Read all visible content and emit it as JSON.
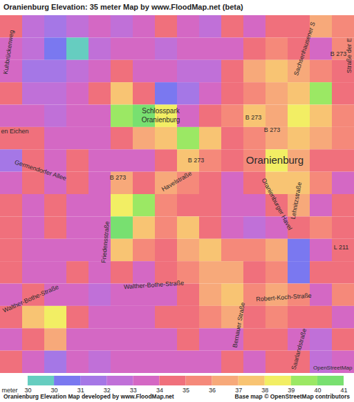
{
  "chart_data": {
    "type": "heatmap",
    "title": "Oranienburg Elevation: 35 meter Map by www.FloodMap.net (beta)",
    "caption": "Oranienburg Elevation Map developed by www.FloodMap.net",
    "credit": "Base map © OpenStreetMap contributors",
    "tick_labels": false,
    "cells": [
      [
        35,
        33,
        32,
        33,
        34,
        33,
        34,
        35,
        34,
        33,
        35,
        34,
        35,
        35,
        37,
        36
      ],
      [
        34,
        33,
        31,
        30,
        33,
        34,
        34,
        33,
        34,
        34,
        34,
        35,
        36,
        35,
        34,
        36
      ],
      [
        34,
        32,
        32,
        33,
        34,
        35,
        34,
        34,
        33,
        33,
        35,
        37,
        38,
        37,
        36,
        35
      ],
      [
        35,
        33,
        33,
        34,
        35,
        38,
        35,
        31,
        32,
        34,
        35,
        36,
        37,
        38,
        40,
        35
      ],
      [
        34,
        34,
        33,
        34,
        34,
        40,
        41,
        39,
        34,
        35,
        36,
        38,
        37,
        39,
        38,
        36
      ],
      [
        35,
        35,
        34,
        34,
        34,
        35,
        37,
        38,
        40,
        38,
        35,
        36,
        37,
        38,
        37,
        36
      ],
      [
        32,
        35,
        34,
        35,
        34,
        34,
        34,
        35,
        38,
        36,
        35,
        36,
        39,
        37,
        35,
        35
      ],
      [
        34,
        35,
        34,
        35,
        34,
        37,
        35,
        37,
        36,
        35,
        34,
        35,
        38,
        38,
        36,
        34
      ],
      [
        35,
        34,
        35,
        34,
        34,
        39,
        40,
        36,
        35,
        35,
        34,
        34,
        35,
        37,
        34,
        35
      ],
      [
        35,
        34,
        35,
        34,
        34,
        41,
        38,
        36,
        38,
        35,
        34,
        33,
        34,
        35,
        36,
        35
      ],
      [
        35,
        34,
        34,
        34,
        34,
        38,
        36,
        35,
        37,
        38,
        36,
        36,
        37,
        31,
        34,
        35
      ],
      [
        35,
        34,
        34,
        35,
        34,
        35,
        34,
        35,
        36,
        37,
        37,
        35,
        36,
        31,
        35,
        35
      ],
      [
        34,
        35,
        34,
        34,
        33,
        34,
        34,
        34,
        35,
        37,
        38,
        36,
        37,
        36,
        34,
        36
      ],
      [
        35,
        38,
        39,
        35,
        34,
        34,
        34,
        35,
        35,
        36,
        37,
        35,
        36,
        35,
        35,
        34
      ],
      [
        34,
        35,
        37,
        34,
        34,
        34,
        34,
        34,
        35,
        34,
        34,
        35,
        35,
        34,
        33,
        35
      ],
      [
        35,
        34,
        32,
        34,
        33,
        34,
        34,
        34,
        34,
        34,
        35,
        34,
        35,
        35,
        33,
        34
      ]
    ],
    "colorbar": {
      "label": "meter",
      "values": [
        30,
        31,
        32,
        33,
        34,
        35,
        36,
        37,
        38,
        39,
        40,
        41
      ],
      "colors": [
        "#66cdc0",
        "#7a78f0",
        "#a577e6",
        "#c070d8",
        "#d468c4",
        "#f0707c",
        "#f5897a",
        "#f7a97a",
        "#f8c473",
        "#f2ee64",
        "#9be864",
        "#78e070"
      ],
      "ticks": [
        30,
        30,
        31,
        32,
        33,
        34,
        35,
        36,
        37,
        38,
        39,
        40,
        41
      ]
    },
    "annotations": [
      "Kuhbrückenweg",
      "Schlosspark",
      "Oranienburg",
      "B 273",
      "B 273",
      "B 273",
      "B 273",
      "B 273",
      "Oranienburg",
      "Sachsenhausener S",
      "Straße der E",
      "en Eichen",
      "Germendorfer Allee",
      "Havelstraße",
      "Friedensstraße",
      "Walther-Bothe-Straße",
      "Walther-Bothe-Straße",
      "Lehnitzstraße",
      "L 211",
      "Robert-Koch-Straße",
      "Bernauer Straße",
      "Oranienburger Havel",
      "Saarlandstraße",
      "OpenStreetMap"
    ]
  }
}
